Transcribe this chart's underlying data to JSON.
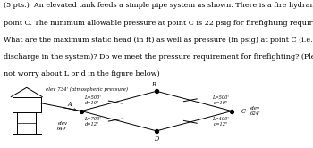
{
  "title_line1": "(5 pts.)  An elevated tank feeds a simple pipe system as shown. There is a fire hydrant at",
  "title_line2": "point C. The minimum allowable pressure at point C is 22 psig for firefighting requirements.",
  "title_line3": "What are the maximum static head (in ft) as well as pressure (in psig) at point C (i.e. no",
  "title_line4": "discharge in the system)? Do we meet the pressure requirement for firefighting? (Please do",
  "title_line5": "not worry about L or d in the figure below)",
  "elev_tank_label": "elev 734' (atmospheric pressure)",
  "elev_A_label": "elev\n649'",
  "elev_C_label": "elev\n624'",
  "pipe_AB_label": "L=500'\nd=10\"",
  "pipe_BC_label": "L=500'\nd=10\"",
  "pipe_AD_label": "L=700'\nd=12\"",
  "pipe_DC_label": "L=400'\nd=12\"",
  "bg_color": "#ffffff",
  "text_color": "#000000",
  "font_size_title": 5.8,
  "font_size_diagram": 4.2
}
